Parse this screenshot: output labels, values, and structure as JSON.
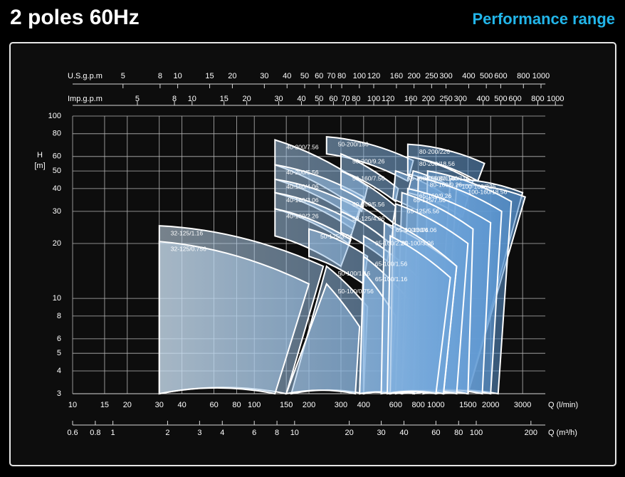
{
  "chart_data": {
    "type": "range",
    "title": "2 poles 60Hz",
    "subtitle": "Performance range",
    "ylabel": "H",
    "yunit": "[m]",
    "xlabel": "Q (l/min)",
    "log_x": true,
    "log_y": true,
    "grid": true,
    "fill_colors": [
      "#eaf5fc",
      "#4e8ecf"
    ],
    "stroke_color": "#ffffff",
    "xlim": [
      10,
      4000
    ],
    "xticks": [
      10,
      15,
      20,
      30,
      40,
      60,
      80,
      100,
      150,
      200,
      300,
      400,
      600,
      800,
      1000,
      1500,
      2000,
      3000
    ],
    "ylim": [
      3,
      100
    ],
    "yticks": [
      3,
      4,
      5,
      6,
      8,
      10,
      20,
      30,
      40,
      50,
      60,
      80,
      100
    ],
    "extra_x_axes": [
      {
        "label": "U.S.g.p.m",
        "xlim": [
          2.64,
          1057
        ],
        "xticks": [
          5,
          8,
          10,
          15,
          20,
          30,
          40,
          50,
          60,
          70,
          80,
          100,
          120,
          160,
          200,
          250,
          300,
          400,
          500,
          600,
          800,
          1000
        ]
      },
      {
        "label": "Imp.g.p.m",
        "xlim": [
          2.2,
          1100
        ],
        "xticks": [
          5,
          8,
          10,
          15,
          20,
          30,
          40,
          50,
          60,
          70,
          80,
          100,
          120,
          160,
          200,
          250,
          300,
          400,
          500,
          600,
          800,
          1000
        ]
      },
      {
        "label": "Q (m³/h)",
        "xlim": [
          0.6,
          240
        ],
        "xticks": [
          0.6,
          0.8,
          1,
          2,
          3,
          4,
          6,
          8,
          10,
          20,
          30,
          40,
          60,
          80,
          100,
          200
        ]
      }
    ],
    "series": [
      {
        "name": "32-125/1.16",
        "q": [
          30,
          240,
          150,
          30
        ],
        "h": [
          25,
          15,
          3,
          3
        ]
      },
      {
        "name": "32-125/0.756",
        "q": [
          30,
          200,
          130,
          30
        ],
        "h": [
          20.5,
          12,
          3,
          3
        ]
      },
      {
        "name": "40-200/7.56",
        "q": [
          130,
          420,
          390,
          130
        ],
        "h": [
          74,
          41,
          30,
          54
        ]
      },
      {
        "name": "40-200/5.56",
        "q": [
          130,
          400,
          370,
          130
        ],
        "h": [
          54,
          36,
          27,
          45
        ]
      },
      {
        "name": "40-160/4.06",
        "q": [
          130,
          380,
          350,
          130
        ],
        "h": [
          45,
          31,
          24,
          38
        ]
      },
      {
        "name": "40-160/3.06",
        "q": [
          130,
          360,
          330,
          130
        ],
        "h": [
          38,
          26,
          20,
          31
        ]
      },
      {
        "name": "40-160/2.26",
        "q": [
          130,
          340,
          300,
          130
        ],
        "h": [
          31,
          21,
          15,
          22
        ]
      },
      {
        "name": "50-125/3.06",
        "q": [
          200,
          420,
          400,
          200
        ],
        "h": [
          24,
          17,
          12,
          17
        ]
      },
      {
        "name": "50-100/1.16",
        "q": [
          250,
          420,
          400,
          160
        ],
        "h": [
          15,
          9,
          3,
          3
        ]
      },
      {
        "name": "50-100/0.756",
        "q": [
          250,
          380,
          360,
          150
        ],
        "h": [
          12,
          7,
          3,
          3
        ]
      },
      {
        "name": "50-200/156",
        "q": [
          250,
          750,
          700,
          250
        ],
        "h": [
          77,
          57,
          44,
          62
        ]
      },
      {
        "name": "50-200/9.26",
        "q": [
          300,
          620,
          600,
          300
        ],
        "h": [
          62,
          40,
          34,
          50
        ]
      },
      {
        "name": "50-160/7.56",
        "q": [
          300,
          600,
          580,
          300
        ],
        "h": [
          50,
          32,
          26,
          40
        ]
      },
      {
        "name": "50-160/5.56",
        "q": [
          300,
          580,
          560,
          300
        ],
        "h": [
          36,
          24,
          20,
          30
        ]
      },
      {
        "name": "50-125/4.06",
        "q": [
          300,
          560,
          540,
          300
        ],
        "h": [
          30,
          20,
          16,
          23
        ]
      },
      {
        "name": "65-100/2.26",
        "q": [
          400,
          800,
          760,
          400
        ],
        "h": [
          22,
          13,
          3,
          3
        ]
      },
      {
        "name": "65-100/1.56",
        "q": [
          400,
          700,
          650,
          380
        ],
        "h": [
          17,
          10,
          3,
          3
        ]
      },
      {
        "name": "65-100/1.16",
        "q": [
          400,
          600,
          560,
          380
        ],
        "h": [
          14,
          8,
          3,
          3
        ]
      },
      {
        "name": "80-200/226",
        "q": [
          700,
          1850,
          1700,
          700
        ],
        "h": [
          70,
          55,
          44,
          60
        ]
      },
      {
        "name": "80-200/18.56",
        "q": [
          700,
          1600,
          1500,
          700
        ],
        "h": [
          60,
          44,
          36,
          48
        ]
      },
      {
        "name": "65-160/156",
        "q": [
          600,
          1400,
          1300,
          580
        ],
        "h": [
          50,
          32,
          22,
          35
        ]
      },
      {
        "name": "80-160/156",
        "q": [
          750,
          1500,
          1400,
          700
        ],
        "h": [
          50,
          36,
          28,
          38
        ]
      },
      {
        "name": "100-160/226",
        "q": [
          1200,
          3000,
          1500,
          1000
        ],
        "h": [
          45,
          38,
          3,
          3
        ]
      },
      {
        "name": "100-160/18.56",
        "q": [
          1300,
          3100,
          1500,
          1100
        ],
        "h": [
          42,
          36,
          3,
          3
        ]
      },
      {
        "name": "80-160/116",
        "q": [
          900,
          2600,
          2200,
          850
        ],
        "h": [
          50,
          34,
          3,
          3
        ]
      },
      {
        "name": "80-160/9.26",
        "q": [
          800,
          2300,
          2000,
          750
        ],
        "h": [
          46,
          30,
          3,
          3
        ]
      },
      {
        "name": "65-160/9.26",
        "q": [
          700,
          2000,
          1800,
          650
        ],
        "h": [
          40,
          26,
          3,
          3
        ]
      },
      {
        "name": "65-125/7.56",
        "q": [
          650,
          1600,
          1500,
          600
        ],
        "h": [
          38,
          24,
          3,
          3
        ]
      },
      {
        "name": "65-125/5.56",
        "q": [
          600,
          1500,
          1300,
          560
        ],
        "h": [
          33,
          20,
          3,
          3
        ]
      },
      {
        "name": "65-100/3.06",
        "q": [
          520,
          1300,
          1100,
          500
        ],
        "h": [
          26,
          15,
          3,
          3
        ]
      },
      {
        "name": "80-100/4.06",
        "q": [
          580,
          1300,
          1100,
          560
        ],
        "h": [
          26,
          15,
          3,
          3
        ]
      },
      {
        "name": "80-100/3.06",
        "q": [
          560,
          1200,
          1000,
          540
        ],
        "h": [
          22,
          13,
          3,
          3
        ]
      }
    ]
  }
}
